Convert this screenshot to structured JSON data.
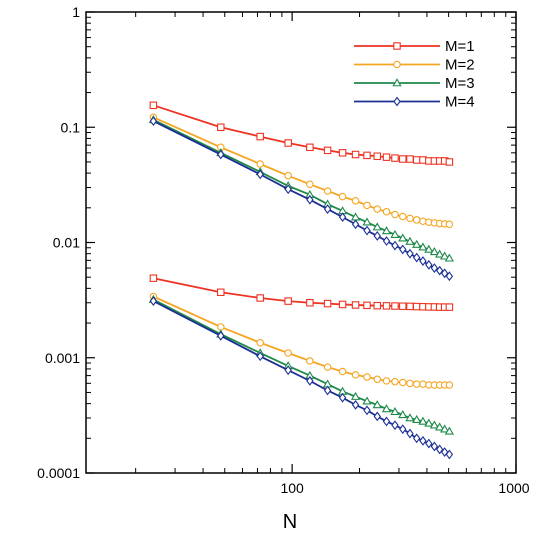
{
  "chart_data": {
    "type": "line",
    "xlabel": "N",
    "ylabel": "",
    "x_scale": "log",
    "y_scale": "log",
    "xlim": [
      12,
      1000
    ],
    "ylim": [
      0.0001,
      1
    ],
    "x_tick_labels": [
      "100",
      "1000"
    ],
    "y_tick_labels": [
      "1",
      "0.1",
      "0.01",
      "0.001",
      "0.0001"
    ],
    "grid": false,
    "legend_position": "top-right",
    "series": [
      {
        "name": "M=1",
        "color": "#ee3322",
        "marker": "square",
        "group": "upper",
        "x": [
          24,
          48,
          72,
          96,
          120,
          144,
          168,
          192,
          216,
          240,
          264,
          288,
          312,
          336,
          360,
          384,
          408,
          432,
          456,
          480,
          504
        ],
        "y": [
          0.155,
          0.1,
          0.083,
          0.073,
          0.067,
          0.063,
          0.06,
          0.058,
          0.057,
          0.056,
          0.055,
          0.054,
          0.053,
          0.053,
          0.052,
          0.052,
          0.051,
          0.051,
          0.051,
          0.051,
          0.05
        ]
      },
      {
        "name": "M=2",
        "color": "#f5a623",
        "marker": "circle",
        "group": "upper",
        "x": [
          24,
          48,
          72,
          96,
          120,
          144,
          168,
          192,
          216,
          240,
          264,
          288,
          312,
          336,
          360,
          384,
          408,
          432,
          456,
          480,
          504
        ],
        "y": [
          0.122,
          0.067,
          0.048,
          0.038,
          0.032,
          0.028,
          0.025,
          0.023,
          0.021,
          0.0195,
          0.0185,
          0.0175,
          0.0168,
          0.0162,
          0.0157,
          0.0153,
          0.015,
          0.0148,
          0.0146,
          0.0145,
          0.0144
        ]
      },
      {
        "name": "M=3",
        "color": "#1e8a4a",
        "marker": "triangle",
        "group": "upper",
        "x": [
          24,
          48,
          72,
          96,
          120,
          144,
          168,
          192,
          216,
          240,
          264,
          288,
          312,
          336,
          360,
          384,
          408,
          432,
          456,
          480,
          504
        ],
        "y": [
          0.116,
          0.06,
          0.041,
          0.031,
          0.026,
          0.0215,
          0.0188,
          0.0166,
          0.015,
          0.0136,
          0.0126,
          0.0117,
          0.0109,
          0.0102,
          0.0096,
          0.0091,
          0.0087,
          0.0083,
          0.0079,
          0.0076,
          0.0073
        ]
      },
      {
        "name": "M=4",
        "color": "#1c2f94",
        "marker": "diamond",
        "group": "upper",
        "x": [
          24,
          48,
          72,
          96,
          120,
          144,
          168,
          192,
          216,
          240,
          264,
          288,
          312,
          336,
          360,
          384,
          408,
          432,
          456,
          480,
          504
        ],
        "y": [
          0.113,
          0.058,
          0.039,
          0.029,
          0.0235,
          0.0195,
          0.0166,
          0.0144,
          0.0127,
          0.0114,
          0.0103,
          0.0094,
          0.0087,
          0.008,
          0.0074,
          0.0069,
          0.0064,
          0.006,
          0.0057,
          0.0054,
          0.0051
        ]
      },
      {
        "name": "M=1",
        "color": "#ee3322",
        "marker": "square",
        "group": "lower",
        "x": [
          24,
          48,
          72,
          96,
          120,
          144,
          168,
          192,
          216,
          240,
          264,
          288,
          312,
          336,
          360,
          384,
          408,
          432,
          456,
          480,
          504
        ],
        "y": [
          0.0049,
          0.0037,
          0.0033,
          0.0031,
          0.003,
          0.00295,
          0.0029,
          0.00287,
          0.00285,
          0.00283,
          0.00282,
          0.00281,
          0.0028,
          0.00279,
          0.00278,
          0.00277,
          0.00276,
          0.00276,
          0.00275,
          0.00275,
          0.00275
        ]
      },
      {
        "name": "M=2",
        "color": "#f5a623",
        "marker": "circle",
        "group": "lower",
        "x": [
          24,
          48,
          72,
          96,
          120,
          144,
          168,
          192,
          216,
          240,
          264,
          288,
          312,
          336,
          360,
          384,
          408,
          432,
          456,
          480,
          504
        ],
        "y": [
          0.0034,
          0.00185,
          0.00135,
          0.0011,
          0.00094,
          0.00083,
          0.00076,
          0.00071,
          0.00068,
          0.00065,
          0.00063,
          0.00062,
          0.00061,
          0.0006,
          0.00059,
          0.00059,
          0.00058,
          0.00058,
          0.00058,
          0.00058,
          0.00058
        ]
      },
      {
        "name": "M=3",
        "color": "#1e8a4a",
        "marker": "triangle",
        "group": "lower",
        "x": [
          24,
          48,
          72,
          96,
          120,
          144,
          168,
          192,
          216,
          240,
          264,
          288,
          312,
          336,
          360,
          384,
          408,
          432,
          456,
          480,
          504
        ],
        "y": [
          0.0032,
          0.0016,
          0.0011,
          0.00085,
          0.0007,
          0.00059,
          0.00051,
          0.00046,
          0.00042,
          0.00039,
          0.00036,
          0.00034,
          0.00032,
          0.0003,
          0.00029,
          0.00028,
          0.00027,
          0.00026,
          0.00025,
          0.00024,
          0.00023
        ]
      },
      {
        "name": "M=4",
        "color": "#1c2f94",
        "marker": "diamond",
        "group": "lower",
        "x": [
          24,
          48,
          72,
          96,
          120,
          144,
          168,
          192,
          216,
          240,
          264,
          288,
          312,
          336,
          360,
          384,
          408,
          432,
          456,
          480,
          504
        ],
        "y": [
          0.0031,
          0.00155,
          0.00103,
          0.00078,
          0.00063,
          0.00052,
          0.00045,
          0.00039,
          0.00035,
          0.00031,
          0.00028,
          0.00026,
          0.00024,
          0.00022,
          0.0002,
          0.00019,
          0.00018,
          0.00017,
          0.00016,
          0.000152,
          0.000145
        ]
      }
    ]
  }
}
